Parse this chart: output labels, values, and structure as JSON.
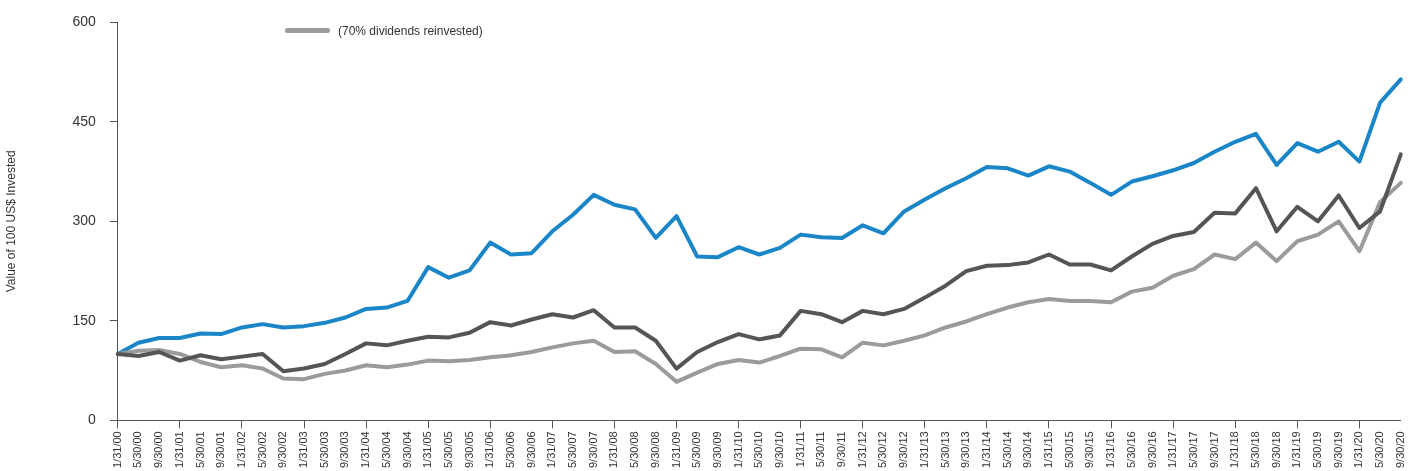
{
  "chart_data": {
    "type": "line",
    "ylabel": "Value of 100 US$ Invested",
    "categories": [
      "1/31/00",
      "5/30/00",
      "9/30/00",
      "1/31/01",
      "5/30/01",
      "9/30/01",
      "1/31/02",
      "5/30/02",
      "9/30/02",
      "1/31/03",
      "5/30/03",
      "9/30/03",
      "1/31/04",
      "5/30/04",
      "9/30/04",
      "1/31/05",
      "5/30/05",
      "9/30/05",
      "1/31/06",
      "5/30/06",
      "9/30/06",
      "1/31/07",
      "5/30/07",
      "9/30/07",
      "1/31/08",
      "5/30/08",
      "9/30/08",
      "1/31/09",
      "5/30/09",
      "9/30/09",
      "1/31/10",
      "5/30/10",
      "9/30/10",
      "1/31/11",
      "5/30/11",
      "9/30/11",
      "1/31/12",
      "5/30/12",
      "9/30/12",
      "1/31/13",
      "5/30/13",
      "9/30/13",
      "1/31/14",
      "5/30/14",
      "9/30/14",
      "1/31/15",
      "5/30/15",
      "9/30/15",
      "1/31/16",
      "5/30/16",
      "9/30/16",
      "1/31/17",
      "5/30/17",
      "9/30/17",
      "1/31/18",
      "5/30/18",
      "9/30/18",
      "1/31/19",
      "5/30/19",
      "9/30/19",
      "1/31/20",
      "5/30/20",
      "9/30/20"
    ],
    "series": [
      {
        "color": "#1a86c8",
        "values": [
          100,
          117,
          124,
          124,
          131,
          130,
          140,
          145,
          140,
          142,
          147,
          155,
          168,
          170,
          180,
          231,
          215,
          226,
          268,
          250,
          252,
          285,
          310,
          340,
          325,
          318,
          275,
          308,
          247,
          246,
          261,
          250,
          260,
          280,
          276,
          275,
          294,
          282,
          315,
          333,
          350,
          365,
          382,
          380,
          369,
          383,
          375,
          358,
          340,
          360,
          368,
          377,
          388,
          405,
          420,
          432,
          385,
          418,
          405,
          420,
          390,
          479,
          514
        ]
      },
      {
        "name": "(70% dividends reinvested)",
        "color": "#9b9b9b",
        "values": [
          100,
          105,
          106,
          100,
          88,
          80,
          83,
          78,
          63,
          62,
          70,
          75,
          83,
          80,
          84,
          90,
          89,
          91,
          95,
          98,
          103,
          110,
          116,
          120,
          103,
          104,
          85,
          58,
          72,
          85,
          91,
          87,
          97,
          108,
          107,
          95,
          117,
          113,
          120,
          128,
          140,
          149,
          160,
          170,
          178,
          183,
          180,
          180,
          178,
          194,
          200,
          218,
          228,
          250,
          243,
          268,
          240,
          270,
          280,
          300,
          255,
          329,
          358
        ]
      },
      {
        "color": "#555555",
        "values": [
          100,
          97,
          103,
          90,
          98,
          92,
          96,
          100,
          74,
          78,
          85,
          100,
          116,
          113,
          120,
          126,
          125,
          132,
          148,
          143,
          152,
          160,
          155,
          166,
          140,
          140,
          120,
          78,
          103,
          118,
          130,
          122,
          128,
          165,
          160,
          148,
          165,
          160,
          168,
          185,
          203,
          225,
          233,
          234,
          238,
          250,
          235,
          235,
          226,
          247,
          266,
          278,
          284,
          313,
          312,
          350,
          285,
          322,
          300,
          339,
          290,
          315,
          401
        ]
      }
    ],
    "ylim": [
      0,
      600
    ],
    "yticks": [
      0,
      150,
      300,
      450,
      600
    ],
    "grid": false,
    "legend": "top left",
    "marker": "none",
    "line_style": "solid"
  }
}
